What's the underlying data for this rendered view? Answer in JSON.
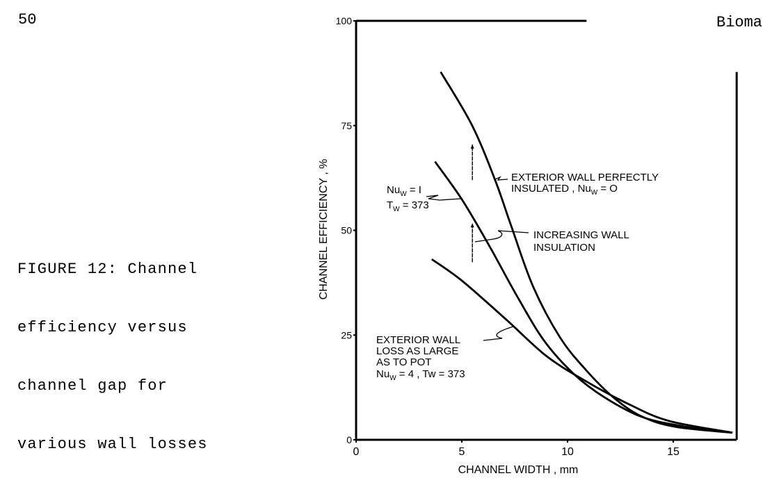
{
  "page_number": "50",
  "running_head": "Bioma",
  "caption": {
    "lines": [
      "FIGURE 12: Channel",
      "efficiency versus",
      "channel gap for",
      "various wall losses"
    ]
  },
  "chart_data": {
    "type": "line",
    "title": "",
    "xlabel": "CHANNEL WIDTH , mm",
    "ylabel": "CHANNEL EFFICIENCY , %",
    "xlim": [
      0,
      18
    ],
    "ylim": [
      0,
      100
    ],
    "xticks": [
      "0",
      "5",
      "10",
      "15"
    ],
    "xtick_values": [
      0,
      5,
      10,
      15
    ],
    "yticks": [
      "0",
      "25",
      "50",
      "75",
      "100"
    ],
    "ytick_values": [
      0,
      25,
      50,
      75,
      100
    ],
    "grid": false,
    "series": [
      {
        "name": "Exterior wall perfectly insulated, Nu_W = 0",
        "x": [
          4.0,
          5.47,
          6.56,
          7.34,
          8.37,
          9.65,
          10.9,
          12.2,
          13.5,
          15.1,
          17.8
        ],
        "y": [
          87.8,
          75.2,
          62.2,
          51.0,
          36.6,
          24.4,
          16.5,
          10.0,
          5.6,
          3.1,
          1.7
        ]
      },
      {
        "name": "Nu_W = 1, T_W = 373",
        "x": [
          3.73,
          5.0,
          6.3,
          7.6,
          8.9,
          10.3,
          11.7,
          13.5,
          15.5,
          17.8
        ],
        "y": [
          66.4,
          57.4,
          46.3,
          34.4,
          23.6,
          15.7,
          10.3,
          5.5,
          3.2,
          1.7
        ]
      },
      {
        "name": "Exterior wall loss as large as to pot, Nu_W = 4, Tw = 373",
        "x": [
          3.58,
          5.0,
          7.1,
          9.0,
          10.9,
          12.9,
          14.8,
          17.8
        ],
        "y": [
          43.1,
          38.0,
          28.7,
          20.0,
          13.9,
          8.5,
          4.5,
          1.7
        ]
      }
    ],
    "frame": {
      "top_line_x_end": 10.9,
      "right_line_y_top": 87.8
    },
    "arrows": [
      {
        "x": 5.5,
        "y_from": 62,
        "y_to": 70.5
      },
      {
        "x": 5.5,
        "y_from": 42.4,
        "y_to": 51.7
      }
    ],
    "annotations": {
      "nu0_line1": "EXTERIOR WALL PERFECTLY",
      "nu0_line2a": "INSULATED , Nu",
      "nu0_sub": "W",
      "nu0_line2b": " = O",
      "nu1_a": "Nu",
      "nu1_sub": "W",
      "nu1_b": " = I",
      "tw1_a": "T",
      "tw1_sub": "W",
      "tw1_b": " = 373",
      "inc_line1": "INCREASING WALL",
      "inc_line2": "INSULATION",
      "nu4_line1": "EXTERIOR WALL",
      "nu4_line2": "LOSS AS LARGE",
      "nu4_line3": "AS TO POT",
      "nu4_a": "Nu",
      "nu4_sub": "W",
      "nu4_b": " = 4 , Tw = 373"
    }
  }
}
